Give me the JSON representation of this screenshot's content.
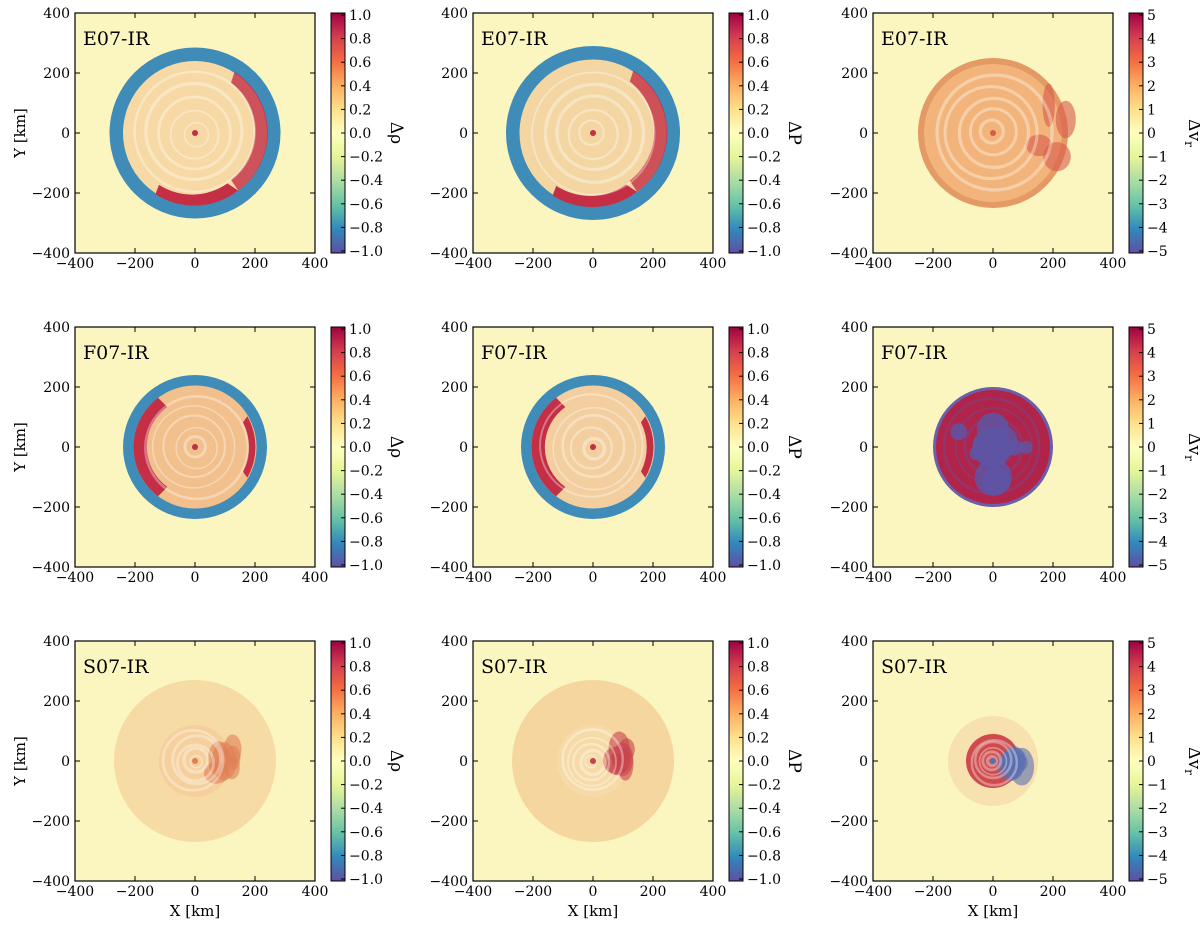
{
  "chart_data": [
    {
      "type": "heatmap",
      "model": "E07-IR",
      "quantity_label": "Δρ",
      "xlabel": "",
      "ylabel": "Y [km]",
      "xlim": [
        -400,
        400
      ],
      "ylim": [
        -400,
        400
      ],
      "xticks": [
        -400,
        -200,
        0,
        200,
        400
      ],
      "yticks": [
        -400,
        -200,
        0,
        200,
        400
      ],
      "clim": [
        -1.0,
        1.0
      ],
      "cticks": [
        "1.0",
        "0.8",
        "0.6",
        "0.4",
        "0.2",
        "0.0",
        "−0.2",
        "−0.4",
        "−0.6",
        "−0.8",
        "−1.0"
      ],
      "features": {
        "outer_radius_km": 285,
        "inner_radius_km": 240,
        "ring_color": "#3f8cb9",
        "interior_color": "#f6d9a4",
        "hot_color": "#c42f46"
      }
    },
    {
      "type": "heatmap",
      "model": "E07-IR",
      "quantity_label": "ΔP",
      "xlabel": "",
      "ylabel": "",
      "xlim": [
        -400,
        400
      ],
      "ylim": [
        -400,
        400
      ],
      "xticks": [
        -400,
        -200,
        0,
        200,
        400
      ],
      "yticks": [
        -400,
        -200,
        0,
        200,
        400
      ],
      "clim": [
        -1.0,
        1.0
      ],
      "cticks": [
        "1.0",
        "0.8",
        "0.6",
        "0.4",
        "0.2",
        "0.0",
        "−0.2",
        "−0.4",
        "−0.6",
        "−0.8",
        "−1.0"
      ],
      "features": {
        "outer_radius_km": 290,
        "inner_radius_km": 245,
        "ring_color": "#3f8cb9",
        "interior_color": "#f3d6a2",
        "hot_color": "#c42f46"
      }
    },
    {
      "type": "heatmap",
      "model": "E07-IR",
      "quantity_label": "Δv",
      "quantity_sub": "r",
      "xlabel": "",
      "ylabel": "",
      "xlim": [
        -400,
        400
      ],
      "ylim": [
        -400,
        400
      ],
      "xticks": [
        -400,
        -200,
        0,
        200,
        400
      ],
      "yticks": [
        -400,
        -200,
        0,
        200,
        400
      ],
      "clim": [
        -5,
        5
      ],
      "cticks": [
        "5",
        "4",
        "3",
        "2",
        "1",
        "0",
        "−1",
        "−2",
        "−3",
        "−4",
        "−5"
      ],
      "features": {
        "outer_radius_km": 250,
        "inner_radius_km": 230,
        "ring_color": "#e39a64",
        "interior_color": "#f2b47a",
        "hot_color": "#d75a4a"
      }
    },
    {
      "type": "heatmap",
      "model": "F07-IR",
      "quantity_label": "Δρ",
      "xlabel": "",
      "ylabel": "Y [km]",
      "xlim": [
        -400,
        400
      ],
      "ylim": [
        -400,
        400
      ],
      "xticks": [
        -400,
        -200,
        0,
        200,
        400
      ],
      "yticks": [
        -400,
        -200,
        0,
        200,
        400
      ],
      "clim": [
        -1.0,
        1.0
      ],
      "cticks": [
        "1.0",
        "0.8",
        "0.6",
        "0.4",
        "0.2",
        "0.0",
        "−0.2",
        "−0.4",
        "−0.6",
        "−0.8",
        "−1.0"
      ],
      "features": {
        "outer_radius_km": 240,
        "inner_radius_km": 205,
        "ring_color": "#3f8cb9",
        "interior_color": "#f1c08c",
        "hot_color": "#c42f46"
      }
    },
    {
      "type": "heatmap",
      "model": "F07-IR",
      "quantity_label": "ΔP",
      "xlabel": "",
      "ylabel": "",
      "xlim": [
        -400,
        400
      ],
      "ylim": [
        -400,
        400
      ],
      "xticks": [
        -400,
        -200,
        0,
        200,
        400
      ],
      "yticks": [
        -400,
        -200,
        0,
        200,
        400
      ],
      "clim": [
        -1.0,
        1.0
      ],
      "cticks": [
        "1.0",
        "0.8",
        "0.6",
        "0.4",
        "0.2",
        "0.0",
        "−0.2",
        "−0.4",
        "−0.6",
        "−0.8",
        "−1.0"
      ],
      "features": {
        "outer_radius_km": 240,
        "inner_radius_km": 205,
        "ring_color": "#3f8cb9",
        "interior_color": "#f3cfa0",
        "hot_color": "#c42f46"
      }
    },
    {
      "type": "heatmap",
      "model": "F07-IR",
      "quantity_label": "Δv",
      "quantity_sub": "r",
      "xlabel": "",
      "ylabel": "",
      "xlim": [
        -400,
        400
      ],
      "ylim": [
        -400,
        400
      ],
      "xticks": [
        -400,
        -200,
        0,
        200,
        400
      ],
      "yticks": [
        -400,
        -200,
        0,
        200,
        400
      ],
      "clim": [
        -5,
        5
      ],
      "cticks": [
        "5",
        "4",
        "3",
        "2",
        "1",
        "0",
        "−1",
        "−2",
        "−3",
        "−4",
        "−5"
      ],
      "features": {
        "outer_radius_km": 200,
        "inner_radius_km": 190,
        "ring_color": "#6a5fa8",
        "interior_color": "#b0244a",
        "hot_color": "#5e55a4"
      }
    },
    {
      "type": "heatmap",
      "model": "S07-IR",
      "quantity_label": "Δρ",
      "xlabel": "X [km]",
      "ylabel": "Y [km]",
      "xlim": [
        -400,
        400
      ],
      "ylim": [
        -400,
        400
      ],
      "xticks": [
        -400,
        -200,
        0,
        200,
        400
      ],
      "yticks": [
        -400,
        -200,
        0,
        200,
        400
      ],
      "clim": [
        -1.0,
        1.0
      ],
      "cticks": [
        "1.0",
        "0.8",
        "0.6",
        "0.4",
        "0.2",
        "0.0",
        "−0.2",
        "−0.4",
        "−0.6",
        "−0.8",
        "−1.0"
      ],
      "features": {
        "outer_radius_km": 270,
        "inner_radius_km": 120,
        "ring_color": "#f2c48e",
        "interior_color": "#f5cf9c",
        "hot_color": "#e07f55"
      }
    },
    {
      "type": "heatmap",
      "model": "S07-IR",
      "quantity_label": "ΔP",
      "xlabel": "X [km]",
      "ylabel": "",
      "xlim": [
        -400,
        400
      ],
      "ylim": [
        -400,
        400
      ],
      "xticks": [
        -400,
        -200,
        0,
        200,
        400
      ],
      "yticks": [
        -400,
        -200,
        0,
        200,
        400
      ],
      "clim": [
        -1.0,
        1.0
      ],
      "cticks": [
        "1.0",
        "0.8",
        "0.6",
        "0.4",
        "0.2",
        "0.0",
        "−0.2",
        "−0.4",
        "−0.6",
        "−0.8",
        "−1.0"
      ],
      "features": {
        "outer_radius_km": 270,
        "inner_radius_km": 120,
        "ring_color": "#f0bb82",
        "interior_color": "#f6dba8",
        "hot_color": "#c8424b"
      }
    },
    {
      "type": "heatmap",
      "model": "S07-IR",
      "quantity_label": "Δv",
      "quantity_sub": "r",
      "xlabel": "X [km]",
      "ylabel": "",
      "xlim": [
        -400,
        400
      ],
      "ylim": [
        -400,
        400
      ],
      "xticks": [
        -400,
        -200,
        0,
        200,
        400
      ],
      "yticks": [
        -400,
        -200,
        0,
        200,
        400
      ],
      "clim": [
        -5,
        5
      ],
      "cticks": [
        "5",
        "4",
        "3",
        "2",
        "1",
        "0",
        "−1",
        "−2",
        "−3",
        "−4",
        "−5"
      ],
      "features": {
        "outer_radius_km": 150,
        "inner_radius_km": 90,
        "ring_color": "#f3cfa0",
        "interior_color": "#cf4a4c",
        "hot_color": "#5c6fb0"
      }
    }
  ],
  "colormap": [
    "#5e4fa2",
    "#3288bd",
    "#66c2a5",
    "#abdda4",
    "#e6f598",
    "#ffffbf",
    "#fee08b",
    "#fdae61",
    "#f46d43",
    "#d53e4f",
    "#9e0142"
  ],
  "background_color": "#fbf6c0"
}
